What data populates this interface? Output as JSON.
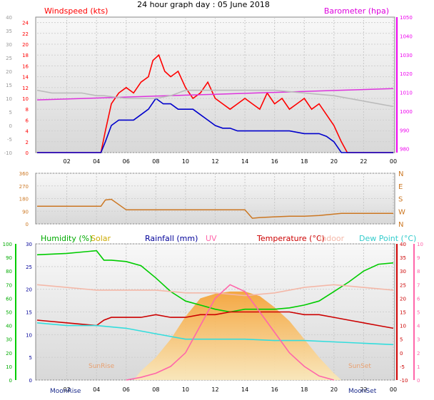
{
  "title": "24 hour graph day : 05 June 2018",
  "colors": {
    "wind_axis": "#ff0000",
    "baro_axis": "#ee00ee",
    "dir_axis": "#cc7722",
    "humidity": "#00cc00",
    "solar": "#ccaa00",
    "rain": "#0000aa",
    "uv": "#ff66aa",
    "temperature": "#cc0000",
    "indoor": "#f4b8a8",
    "dewpoint": "#33dddd"
  },
  "legend": {
    "wind": "Windspeed (kts)",
    "baro": "Barometer (hpa)",
    "humidity": "Humidity (%)",
    "solar": "Solar",
    "rain": "Rainfall (mm)",
    "uv": "UV",
    "temp": "Temperature (°C)",
    "indoor": "Indoor",
    "dew": "Dew Point (°C)"
  },
  "x_ticks": [
    "02",
    "04",
    "06",
    "08",
    "10",
    "12",
    "14",
    "16",
    "18",
    "20",
    "22",
    "00"
  ],
  "annotations": {
    "sunrise": "SunRise",
    "sunset": "SunSet",
    "moonrise": "MoonRise",
    "moonset": "MoonSet"
  },
  "chart_data": [
    {
      "type": "line",
      "name": "wind",
      "x_unit": "hours",
      "y_left": {
        "label": "Windspeed (kts)",
        "ylim": [
          0,
          25
        ],
        "ticks": [
          "0",
          "2",
          "4",
          "6",
          "8",
          "10",
          "12",
          "14",
          "16",
          "18",
          "20",
          "22",
          "24"
        ]
      },
      "y_left_outer": {
        "ylim": [
          -10,
          40
        ],
        "ticks": [
          "-10",
          "-5",
          "0",
          "5",
          "10",
          "15",
          "20",
          "25",
          "30",
          "35",
          "40"
        ]
      },
      "y_right": {
        "label": "Barometer (hpa)",
        "ylim": [
          978,
          1050
        ],
        "ticks": [
          "980",
          "990",
          "1000",
          "1010",
          "1020",
          "1030",
          "1040",
          "1050"
        ]
      },
      "series": [
        {
          "name": "Gust",
          "axis": "left",
          "color": "#ff0000",
          "x": [
            0,
            4.3,
            4.6,
            5,
            5.5,
            6,
            6.5,
            7,
            7.5,
            7.8,
            8.2,
            8.6,
            9,
            9.5,
            10,
            10.5,
            11,
            11.5,
            12,
            12.5,
            13,
            13.5,
            14,
            14.5,
            15,
            15.5,
            16,
            16.5,
            17,
            17.5,
            18,
            18.5,
            19,
            19.5,
            20,
            20.5,
            20.9,
            24
          ],
          "y": [
            0,
            0,
            4,
            9,
            11,
            12,
            11,
            13,
            14,
            17,
            18,
            15,
            14,
            15,
            12,
            10,
            11,
            13,
            10,
            9,
            8,
            9,
            10,
            9,
            8,
            11,
            9,
            10,
            8,
            9,
            10,
            8,
            9,
            7,
            5,
            2,
            0,
            0
          ]
        },
        {
          "name": "Average",
          "axis": "left",
          "color": "#0000cc",
          "x": [
            0,
            4.3,
            4.6,
            5,
            5.5,
            6,
            6.5,
            7,
            7.5,
            8,
            8.5,
            9,
            9.5,
            10,
            10.5,
            11,
            11.5,
            12,
            12.5,
            13,
            13.5,
            14,
            15,
            16,
            17,
            18,
            19,
            19.5,
            20,
            20.5,
            24
          ],
          "y": [
            0,
            0,
            2,
            5,
            6,
            6,
            6,
            7,
            8,
            10,
            9,
            9,
            8,
            8,
            8,
            7,
            6,
            5,
            4.5,
            4.5,
            4,
            4,
            4,
            4,
            4,
            3.5,
            3.5,
            3,
            2,
            0,
            0
          ]
        },
        {
          "name": "Barometer",
          "axis": "right",
          "color": "#dd33dd",
          "x": [
            0,
            4,
            8,
            12,
            16,
            20,
            24
          ],
          "y": [
            1006,
            1007,
            1008,
            1009,
            1010,
            1011,
            1012
          ]
        },
        {
          "name": "Windchill",
          "axis": "left_outer",
          "color": "#bbbbbb",
          "x": [
            0,
            1,
            3,
            4,
            4.5,
            6,
            8,
            9,
            10,
            10.5,
            12,
            16,
            18,
            20,
            22,
            24
          ],
          "y": [
            13,
            12,
            12,
            11,
            11,
            10,
            10,
            11,
            13,
            13,
            13,
            13,
            12,
            11,
            9,
            7
          ]
        }
      ]
    },
    {
      "type": "line",
      "name": "wind-direction",
      "y_left": {
        "ylim": [
          0,
          360
        ],
        "ticks": [
          "0",
          "90",
          "180",
          "270",
          "360"
        ]
      },
      "y_right": {
        "ticks": [
          "N",
          "W",
          "S",
          "E",
          "N"
        ]
      },
      "series": [
        {
          "name": "Direction",
          "color": "#cc7722",
          "x": [
            0,
            4.3,
            4.6,
            5,
            6,
            7,
            8,
            9,
            10,
            11,
            12,
            13,
            14,
            14.5,
            15,
            16,
            17,
            18,
            19,
            20,
            20.5,
            24
          ],
          "y": [
            125,
            125,
            170,
            175,
            100,
            100,
            100,
            100,
            100,
            100,
            100,
            100,
            100,
            40,
            45,
            50,
            55,
            55,
            60,
            70,
            75,
            75
          ]
        }
      ]
    },
    {
      "type": "line",
      "name": "weather",
      "y_axes": {
        "humidity": {
          "ylim": [
            0,
            100
          ],
          "ticks": [
            "0",
            "10",
            "20",
            "30",
            "40",
            "50",
            "60",
            "70",
            "80",
            "90",
            "100"
          ]
        },
        "rain": {
          "ylim": [
            0,
            30
          ],
          "ticks": [
            "0",
            "5",
            "10",
            "15",
            "20",
            "25",
            "30"
          ]
        },
        "temperature": {
          "ylim": [
            -10,
            40
          ],
          "ticks": [
            "-10",
            "-5",
            "0",
            "5",
            "10",
            "15",
            "20",
            "25",
            "30",
            "35",
            "40"
          ]
        },
        "uv": {
          "ylim": [
            0,
            10
          ],
          "ticks": [
            "0",
            "1",
            "2",
            "3",
            "4",
            "5",
            "6",
            "7",
            "8",
            "9",
            "10"
          ]
        }
      },
      "series": [
        {
          "name": "Humidity",
          "axis": "humidity",
          "color": "#00cc00",
          "x": [
            0,
            2,
            3,
            4,
            4.5,
            5,
            6,
            7,
            8,
            9,
            10,
            11,
            12,
            13,
            14,
            15,
            16,
            17,
            18,
            19,
            20,
            21,
            22,
            23,
            24
          ],
          "y": [
            92,
            93,
            94,
            95,
            88,
            88,
            87,
            84,
            75,
            65,
            58,
            55,
            52,
            50,
            52,
            52,
            52,
            53,
            55,
            58,
            65,
            72,
            80,
            85,
            86
          ]
        },
        {
          "name": "Temperature",
          "axis": "temperature",
          "color": "#cc0000",
          "x": [
            0,
            2,
            4,
            4.5,
            5,
            6,
            7,
            8,
            9,
            10,
            11,
            12,
            13,
            14,
            15,
            16,
            17,
            18,
            19,
            20,
            21,
            22,
            23,
            24
          ],
          "y": [
            12,
            11,
            10,
            12,
            13,
            13,
            13,
            14,
            13,
            13,
            14,
            14,
            15,
            15,
            15,
            15,
            15,
            14,
            14,
            13,
            12,
            11,
            10,
            9
          ]
        },
        {
          "name": "Dew Point",
          "axis": "temperature",
          "color": "#33dddd",
          "x": [
            0,
            2,
            4,
            6,
            8,
            10,
            12,
            14,
            16,
            18,
            20,
            22,
            24
          ],
          "y": [
            11,
            10,
            10,
            9,
            7,
            5,
            5,
            5,
            4.5,
            4.5,
            4,
            3.5,
            3
          ]
        },
        {
          "name": "Indoor",
          "axis": "temperature",
          "color": "#f4b8a8",
          "x": [
            0,
            2,
            4,
            6,
            8,
            10,
            12,
            14,
            16,
            18,
            20,
            22,
            24
          ],
          "y": [
            25,
            24,
            23,
            23,
            23,
            22,
            22,
            21,
            22,
            24,
            25,
            24,
            23
          ]
        },
        {
          "name": "Solar",
          "axis": "rain",
          "color": "#f0c070",
          "x": [
            6.5,
            7,
            8,
            9,
            10,
            11,
            12,
            13,
            14,
            15,
            16,
            17,
            18,
            19,
            20,
            20.5
          ],
          "y": [
            0,
            2,
            5,
            9,
            14,
            18,
            19,
            19.5,
            19.5,
            18.5,
            16,
            13,
            9,
            5,
            1.5,
            0
          ]
        },
        {
          "name": "UV",
          "axis": "uv",
          "color": "#ff66aa",
          "x": [
            6,
            7,
            8,
            9,
            10,
            11,
            12,
            13,
            14,
            15,
            16,
            17,
            18,
            19,
            20
          ],
          "y": [
            0,
            0.2,
            0.5,
            1,
            2,
            4,
            6,
            7,
            6.5,
            5,
            3.5,
            2,
            1,
            0.3,
            0
          ]
        }
      ]
    }
  ]
}
